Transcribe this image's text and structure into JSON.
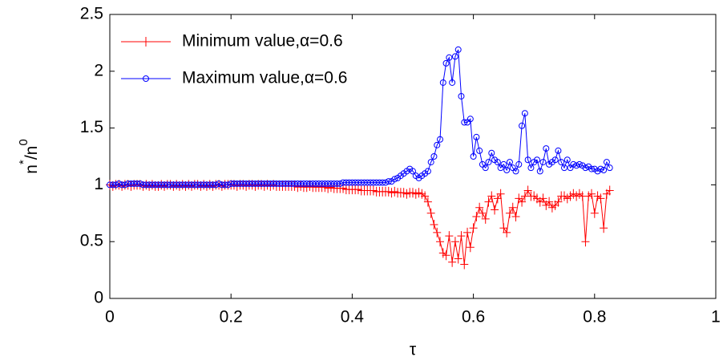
{
  "chart_data": {
    "type": "line",
    "xlabel": "τ",
    "ylabel": [
      "n",
      "*",
      "/n",
      "0"
    ],
    "xlim": [
      0,
      1
    ],
    "ylim": [
      0,
      2.5
    ],
    "xticks": [
      0,
      0.2,
      0.4,
      0.6,
      0.8,
      1
    ],
    "yticks": [
      0,
      0.5,
      1,
      1.5,
      2,
      2.5
    ],
    "grid": false,
    "legend": "upper-left",
    "x": [
      0,
      0.005,
      0.01,
      0.015,
      0.02,
      0.025,
      0.03,
      0.035,
      0.04,
      0.045,
      0.05,
      0.055,
      0.06,
      0.065,
      0.07,
      0.075,
      0.08,
      0.085,
      0.09,
      0.095,
      0.1,
      0.105,
      0.11,
      0.115,
      0.12,
      0.125,
      0.13,
      0.135,
      0.14,
      0.145,
      0.15,
      0.155,
      0.16,
      0.165,
      0.17,
      0.175,
      0.18,
      0.185,
      0.19,
      0.195,
      0.2,
      0.205,
      0.21,
      0.215,
      0.22,
      0.225,
      0.23,
      0.235,
      0.24,
      0.245,
      0.25,
      0.255,
      0.26,
      0.265,
      0.27,
      0.275,
      0.28,
      0.285,
      0.29,
      0.295,
      0.3,
      0.305,
      0.31,
      0.315,
      0.32,
      0.325,
      0.33,
      0.335,
      0.34,
      0.345,
      0.35,
      0.355,
      0.36,
      0.365,
      0.37,
      0.375,
      0.38,
      0.385,
      0.39,
      0.395,
      0.4,
      0.405,
      0.41,
      0.415,
      0.42,
      0.425,
      0.43,
      0.435,
      0.44,
      0.445,
      0.45,
      0.455,
      0.46,
      0.465,
      0.47,
      0.475,
      0.48,
      0.485,
      0.49,
      0.495,
      0.5,
      0.505,
      0.51,
      0.515,
      0.52,
      0.525,
      0.53,
      0.535,
      0.54,
      0.545,
      0.55,
      0.555,
      0.56,
      0.565,
      0.57,
      0.575,
      0.58,
      0.585,
      0.59,
      0.595,
      0.6,
      0.605,
      0.61,
      0.615,
      0.62,
      0.625,
      0.63,
      0.635,
      0.64,
      0.645,
      0.65,
      0.655,
      0.66,
      0.665,
      0.67,
      0.675,
      0.68,
      0.685,
      0.69,
      0.695,
      0.7,
      0.705,
      0.71,
      0.715,
      0.72,
      0.725,
      0.73,
      0.735,
      0.74,
      0.745,
      0.75,
      0.755,
      0.76,
      0.765,
      0.77,
      0.775,
      0.78,
      0.785,
      0.79,
      0.795,
      0.8,
      0.805,
      0.81,
      0.815,
      0.82,
      0.825
    ],
    "series": [
      {
        "name": "Minimum value,α=0.6",
        "color": "#ff0000",
        "marker": "+",
        "values": [
          1,
          0.99,
          1,
          1,
          0.99,
          1,
          1,
          0.99,
          1,
          1,
          1,
          0.99,
          1,
          0.99,
          1,
          0.99,
          0.99,
          1,
          0.99,
          1,
          1,
          0.99,
          1,
          0.99,
          1,
          0.99,
          1,
          0.99,
          1,
          1,
          0.99,
          1,
          0.99,
          1,
          0.99,
          1,
          1,
          0.99,
          1,
          1,
          1,
          1,
          0.99,
          1,
          1,
          0.99,
          1,
          1,
          0.99,
          1,
          1,
          0.99,
          1,
          0.99,
          1,
          0.99,
          0.99,
          0.99,
          0.99,
          0.99,
          0.99,
          0.99,
          0.98,
          0.99,
          0.98,
          0.98,
          0.99,
          0.98,
          0.98,
          0.98,
          0.98,
          0.98,
          0.97,
          0.98,
          0.97,
          0.97,
          0.97,
          0.97,
          0.96,
          0.96,
          0.96,
          0.96,
          0.96,
          0.95,
          0.95,
          0.95,
          0.95,
          0.95,
          0.94,
          0.94,
          0.94,
          0.94,
          0.94,
          0.93,
          0.94,
          0.93,
          0.93,
          0.93,
          0.92,
          0.93,
          0.93,
          0.92,
          0.93,
          0.92,
          0.9,
          0.85,
          0.75,
          0.65,
          0.58,
          0.5,
          0.4,
          0.38,
          0.55,
          0.32,
          0.5,
          0.35,
          0.55,
          0.3,
          0.58,
          0.45,
          0.62,
          0.72,
          0.8,
          0.75,
          0.7,
          0.85,
          0.9,
          0.78,
          0.88,
          0.92,
          0.62,
          0.58,
          0.75,
          0.8,
          0.72,
          0.88,
          0.85,
          0.9,
          0.95,
          0.9,
          0.9,
          0.88,
          0.85,
          0.88,
          0.82,
          0.85,
          0.8,
          0.82,
          0.85,
          0.9,
          0.9,
          0.88,
          0.9,
          0.92,
          0.9,
          0.92,
          0.9,
          0.5,
          0.9,
          0.92,
          0.75,
          0.9,
          0.88,
          0.62,
          0.92,
          0.95
        ]
      },
      {
        "name": "Maximum value,α=0.6",
        "color": "#0000ff",
        "marker": "o",
        "values": [
          1,
          1,
          1,
          1.01,
          1,
          1,
          1.01,
          1.01,
          1.01,
          1.01,
          1.01,
          1,
          1,
          1,
          1,
          1,
          1,
          1,
          1,
          1,
          1,
          1,
          1,
          1,
          1,
          1,
          1,
          1,
          1,
          1,
          1,
          1,
          1,
          1,
          1,
          1,
          1.01,
          1,
          1,
          1,
          1.01,
          1.01,
          1.01,
          1.01,
          1.01,
          1.01,
          1.01,
          1.01,
          1.01,
          1.01,
          1.01,
          1.01,
          1.01,
          1.01,
          1.01,
          1.01,
          1.01,
          1.01,
          1.01,
          1.01,
          1.01,
          1.01,
          1.01,
          1.01,
          1.01,
          1.01,
          1.01,
          1.01,
          1.01,
          1.01,
          1.01,
          1.01,
          1.01,
          1.01,
          1.01,
          1.01,
          1.01,
          1.02,
          1.02,
          1.02,
          1.02,
          1.02,
          1.02,
          1.02,
          1.02,
          1.02,
          1.02,
          1.02,
          1.02,
          1.02,
          1.02,
          1.02,
          1.03,
          1.03,
          1.05,
          1.06,
          1.08,
          1.1,
          1.12,
          1.14,
          1.12,
          1.08,
          1.06,
          1.08,
          1.1,
          1.12,
          1.2,
          1.25,
          1.35,
          1.4,
          1.9,
          2.07,
          2.12,
          1.9,
          2.13,
          2.19,
          1.78,
          1.55,
          1.55,
          1.58,
          1.25,
          1.42,
          1.3,
          1.18,
          1.15,
          1.2,
          1.28,
          1.22,
          1.2,
          1.15,
          1.18,
          1.13,
          1.2,
          1.15,
          1.12,
          1.18,
          1.52,
          1.63,
          1.22,
          1.15,
          1.2,
          1.22,
          1.12,
          1.2,
          1.32,
          1.18,
          1.2,
          1.22,
          1.3,
          1.2,
          1.15,
          1.22,
          1.15,
          1.18,
          1.17,
          1.18,
          1.17,
          1.15,
          1.16,
          1.14,
          1.14,
          1.12,
          1.14,
          1.13,
          1.2,
          1.15
        ]
      }
    ]
  }
}
